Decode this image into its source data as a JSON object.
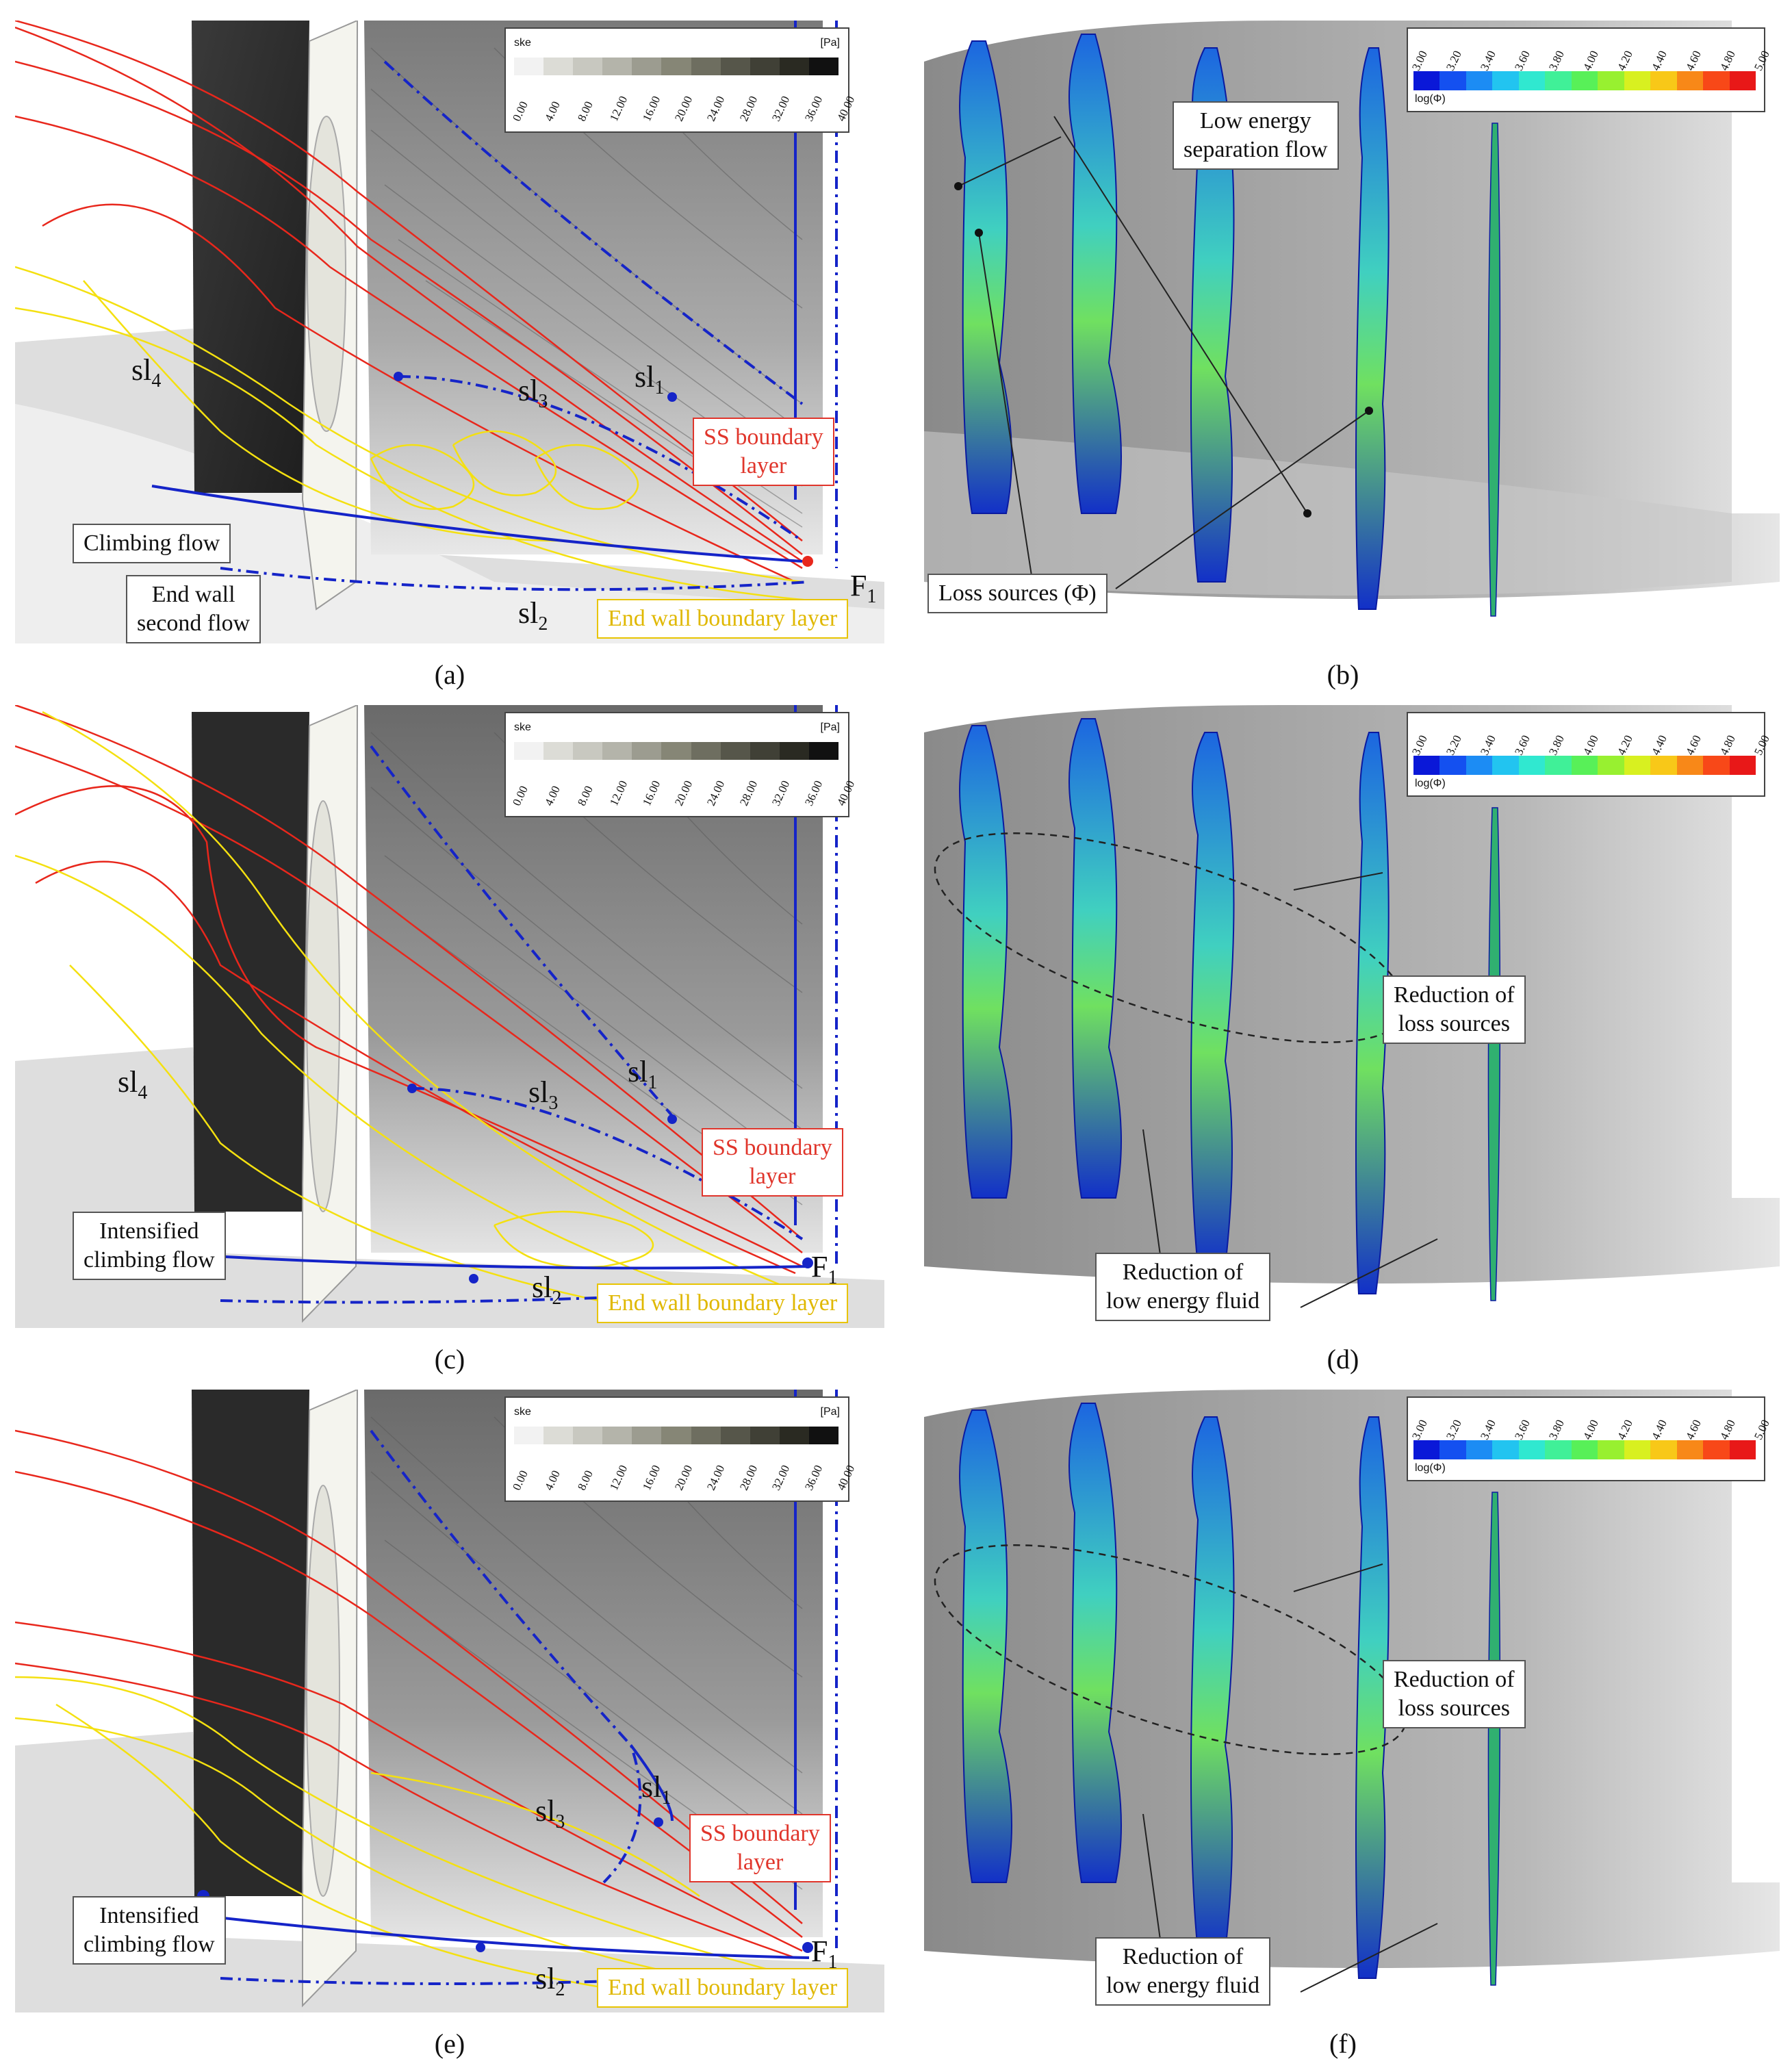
{
  "figure": {
    "panels": [
      {
        "id": "a",
        "caption": "(a)",
        "kind": "streamline",
        "boxes": {
          "climbing": "Climbing flow",
          "endwall_1": "End wall",
          "endwall_2": "second flow",
          "ss_1": "SS boundary",
          "ss_2": "layer",
          "ewbl": "End wall boundary layer"
        },
        "labels": {
          "sl1": "sl",
          "sl1_sub": "1",
          "sl2": "sl",
          "sl2_sub": "2",
          "sl3": "sl",
          "sl3_sub": "3",
          "sl4": "sl",
          "sl4_sub": "4",
          "f1": "F",
          "f1_sub": "1"
        }
      },
      {
        "id": "b",
        "caption": "(b)",
        "kind": "loss",
        "boxes": {
          "low_1": "Low energy",
          "low_2": "separation flow",
          "loss": "Loss sources (Φ)"
        }
      },
      {
        "id": "c",
        "caption": "(c)",
        "kind": "streamline",
        "boxes": {
          "climbing_1": "Intensified",
          "climbing_2": "climbing flow",
          "ss_1": "SS boundary",
          "ss_2": "layer",
          "ewbl": "End wall boundary layer"
        },
        "labels": {
          "sl1": "sl",
          "sl1_sub": "1",
          "sl2": "sl",
          "sl2_sub": "2",
          "sl3": "sl",
          "sl3_sub": "3",
          "sl4": "sl",
          "sl4_sub": "4",
          "f1": "F",
          "f1_sub": "1"
        }
      },
      {
        "id": "d",
        "caption": "(d)",
        "kind": "loss",
        "boxes": {
          "red_1": "Reduction of",
          "red_2": "loss sources",
          "low_1": "Reduction of",
          "low_2": "low energy fluid"
        }
      },
      {
        "id": "e",
        "caption": "(e)",
        "kind": "streamline",
        "boxes": {
          "climbing_1": "Intensified",
          "climbing_2": "climbing flow",
          "ss_1": "SS boundary",
          "ss_2": "layer",
          "ewbl": "End wall boundary layer"
        },
        "labels": {
          "sl1": "sl",
          "sl1_sub": "1",
          "sl2": "sl",
          "sl2_sub": "2",
          "sl3": "sl",
          "sl3_sub": "3",
          "f1": "F",
          "f1_sub": "1"
        }
      },
      {
        "id": "f",
        "caption": "(f)",
        "kind": "loss",
        "boxes": {
          "red_1": "Reduction of",
          "red_2": "loss sources",
          "low_1": "Reduction of",
          "low_2": "low energy fluid"
        }
      }
    ],
    "legend_ske": {
      "title": "ske",
      "unit": "[Pa]",
      "ticks": [
        "0.00",
        "4.00",
        "8.00",
        "12.00",
        "16.00",
        "20.00",
        "24.00",
        "28.00",
        "32.00",
        "36.00",
        "40.00"
      ],
      "colors": [
        "#f2f2f2",
        "#dcdcd6",
        "#c8c8c0",
        "#b4b4aa",
        "#9c9c90",
        "#868676",
        "#6e6e60",
        "#56564a",
        "#404036",
        "#2a2a22",
        "#111111"
      ]
    },
    "legend_phi": {
      "title": "log(Φ)",
      "ticks": [
        "3.00",
        "3.20",
        "3.40",
        "3.60",
        "3.80",
        "4.00",
        "4.20",
        "4.40",
        "4.60",
        "4.80",
        "5.00"
      ],
      "colors": [
        "#0a18d8",
        "#1450f0",
        "#1c8cf4",
        "#22c4f0",
        "#30e8d0",
        "#40f098",
        "#58f058",
        "#98f030",
        "#d8f020",
        "#f8c818",
        "#f88818",
        "#f84818",
        "#e81818"
      ]
    }
  }
}
